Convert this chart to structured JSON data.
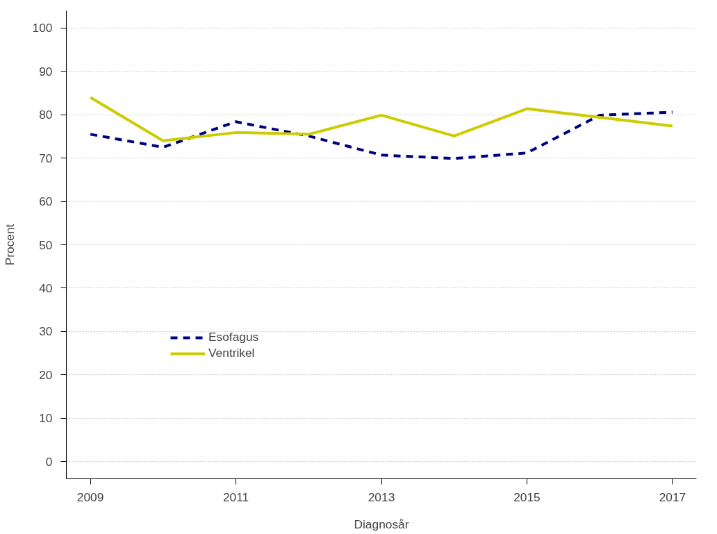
{
  "chart_data": {
    "type": "line",
    "xlabel": "Diagnosår",
    "ylabel": "Procent",
    "x": [
      2009,
      2010,
      2011,
      2012,
      2013,
      2014,
      2015,
      2016,
      2017
    ],
    "series": [
      {
        "name": "Esofagus",
        "color": "#00007f",
        "line_style": "dashed",
        "values": [
          75.5,
          72.5,
          78.4,
          75.1,
          70.7,
          69.9,
          71.2,
          79.9,
          80.6
        ]
      },
      {
        "name": "Ventrikel",
        "color": "#cccc00",
        "line_style": "solid",
        "values": [
          84.0,
          74.0,
          75.9,
          75.5,
          79.9,
          75.1,
          81.4,
          79.4,
          77.4
        ]
      }
    ],
    "xlim": [
      2008.67,
      2017.33
    ],
    "ylim": [
      -4,
      104
    ],
    "xticks": [
      2009,
      2011,
      2013,
      2015,
      2017
    ],
    "yticks": [
      0,
      10,
      20,
      30,
      40,
      50,
      60,
      70,
      80,
      90,
      100
    ],
    "grid": "y",
    "legend": "left",
    "marker": "none"
  }
}
